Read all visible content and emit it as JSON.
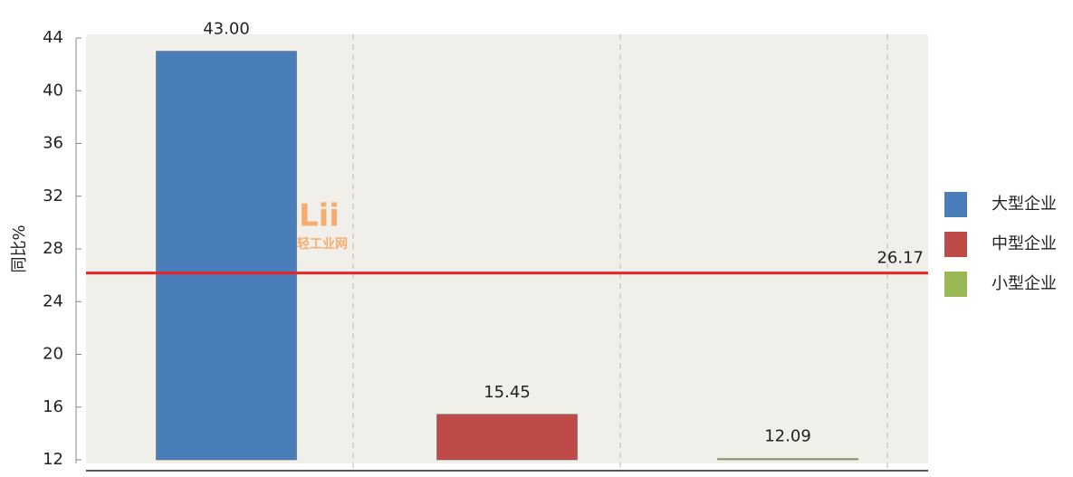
{
  "chart_data": {
    "type": "bar",
    "y_label": "同比%",
    "series": [
      {
        "name": "大型企业",
        "color": "#4a7ebb",
        "values": [
          43.0
        ],
        "value_labels": [
          "43.00"
        ]
      },
      {
        "name": "中型企业",
        "color": "#be4b48",
        "values": [
          15.45
        ]
      },
      {
        "name": "小型企业",
        "color": "#98b954",
        "values": [
          12.09
        ]
      }
    ],
    "reference_line": {
      "value": 26.17,
      "color": "#ee2222"
    },
    "ylim": [
      12,
      44
    ],
    "yticks": [
      12,
      16,
      20,
      24,
      28,
      32,
      36,
      40,
      44
    ],
    "watermark": [
      "CLii",
      "中国轻工业网"
    ],
    "legend": "right"
  }
}
